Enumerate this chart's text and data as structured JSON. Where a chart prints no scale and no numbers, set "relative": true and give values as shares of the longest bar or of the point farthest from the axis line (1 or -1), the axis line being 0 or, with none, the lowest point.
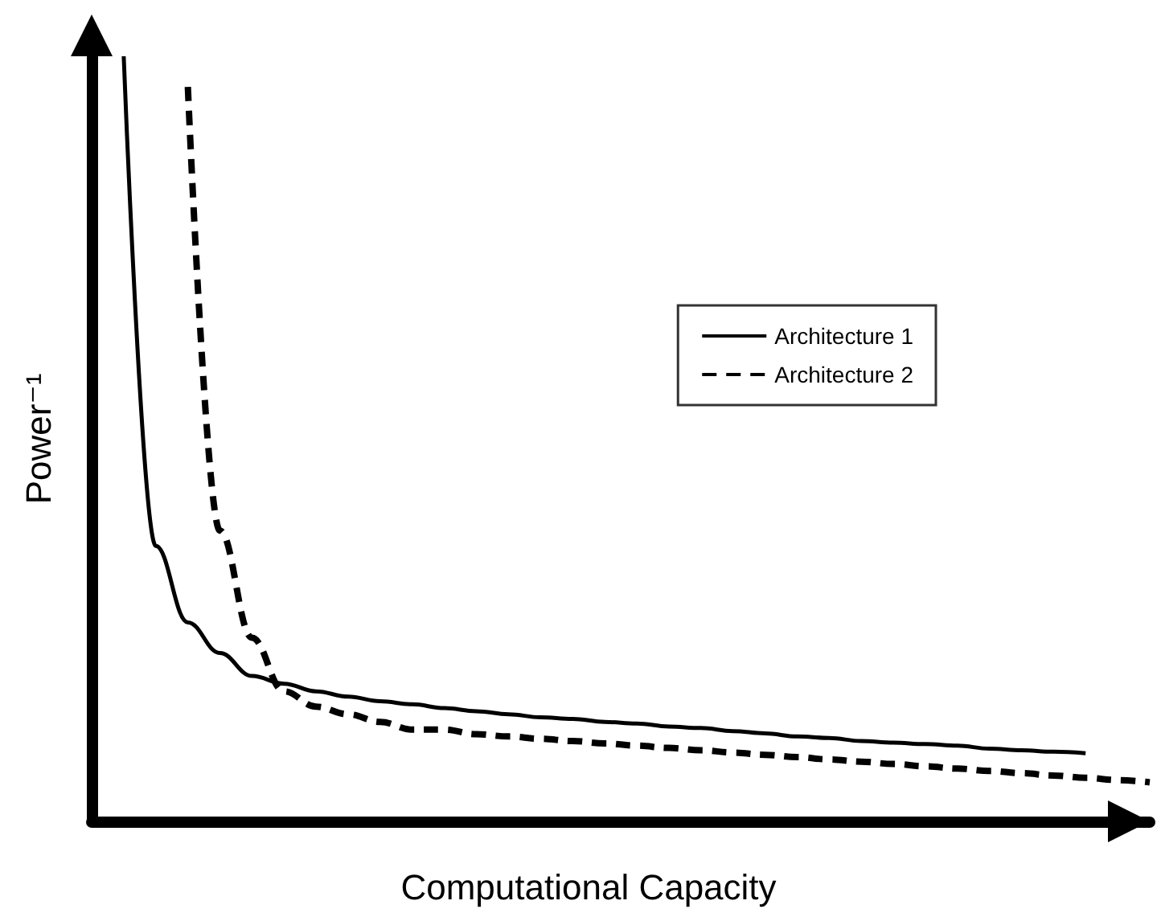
{
  "chart_data": {
    "type": "line",
    "relative": true,
    "xlabel": "Computational Capacity",
    "ylabel": "Power⁻¹",
    "legend": "right",
    "marker": "none",
    "grid": false,
    "categories": [
      null,
      null,
      null,
      null,
      null,
      null,
      null,
      null,
      null,
      null,
      null,
      null,
      null,
      null,
      null,
      null,
      null,
      null,
      null,
      null,
      null,
      null,
      null,
      null,
      null,
      null,
      null,
      null,
      null,
      null,
      null,
      null,
      null,
      null
    ],
    "series": [
      {
        "name": "Architecture 1",
        "color": "#000000",
        "line_style": "solid",
        "values": [
          null,
          1.0,
          0.36,
          0.26,
          0.22,
          0.19,
          0.18,
          0.17,
          0.163,
          0.157,
          0.153,
          0.148,
          0.144,
          0.14,
          0.136,
          0.134,
          0.13,
          0.128,
          0.124,
          0.122,
          0.118,
          0.115,
          0.111,
          0.109,
          0.105,
          0.103,
          0.101,
          0.099,
          0.095,
          0.093,
          0.091,
          0.089,
          null,
          null
        ]
      },
      {
        "name": "Architecture 2",
        "color": "#000000",
        "line_style": "dashed",
        "values": [
          null,
          null,
          null,
          0.96,
          0.38,
          0.24,
          0.17,
          0.15,
          0.14,
          0.13,
          0.12,
          0.12,
          0.114,
          0.111,
          0.108,
          0.105,
          0.102,
          0.099,
          0.096,
          0.093,
          0.09,
          0.087,
          0.084,
          0.081,
          0.078,
          0.075,
          0.072,
          0.069,
          0.066,
          0.063,
          0.06,
          0.057,
          0.054,
          0.051
        ]
      }
    ]
  }
}
